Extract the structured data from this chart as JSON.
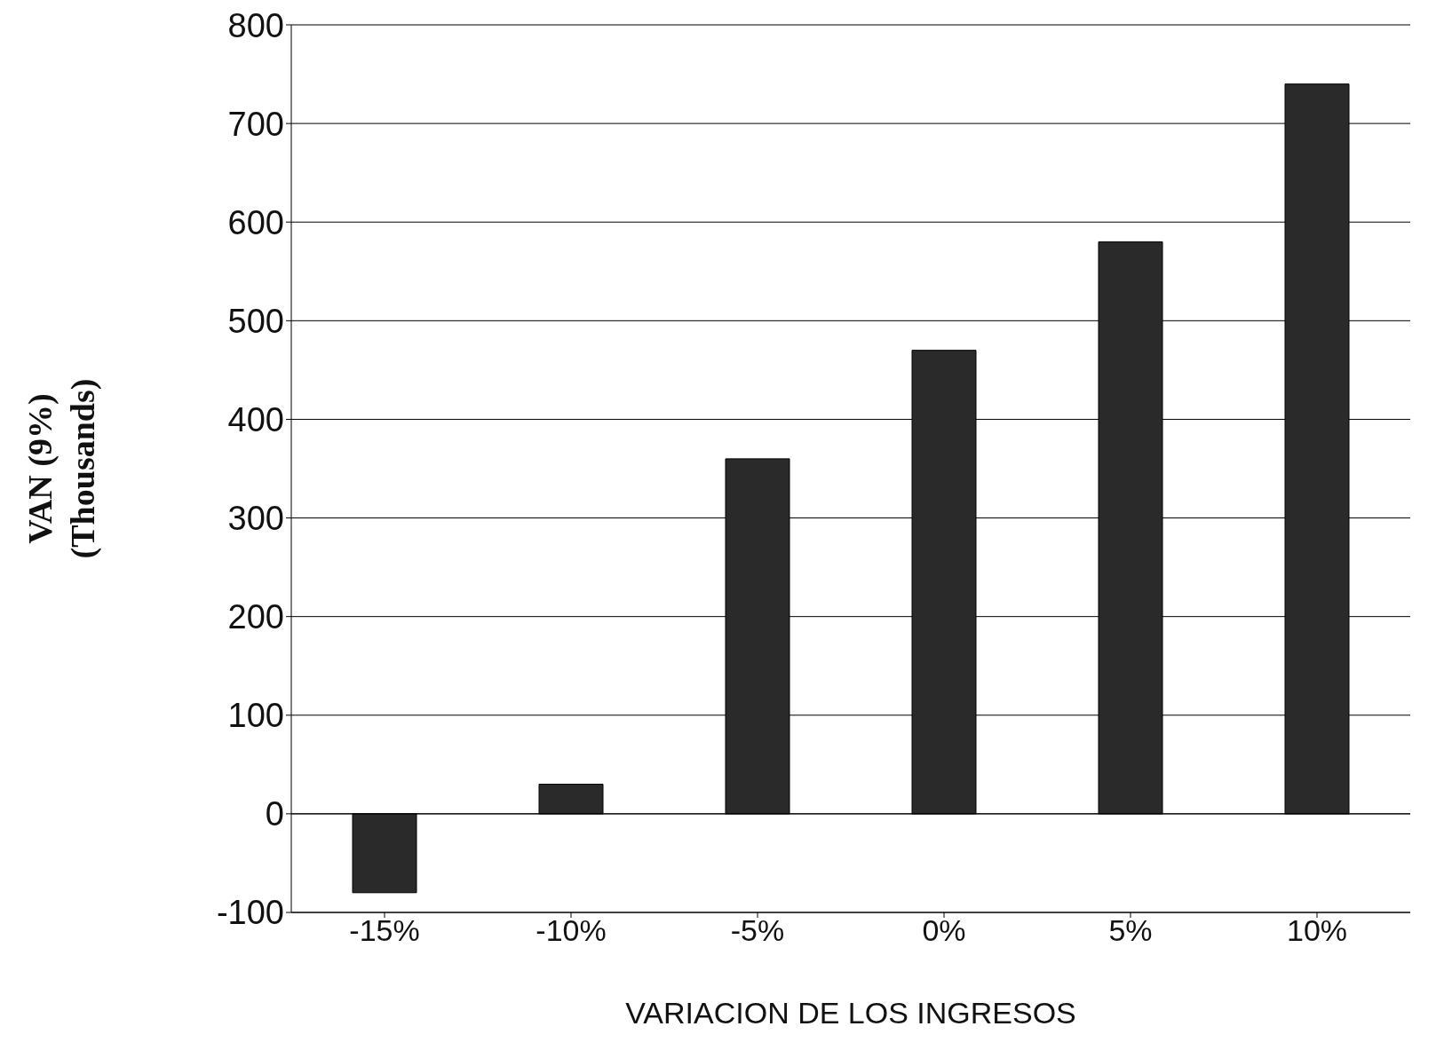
{
  "chart_data": {
    "type": "bar",
    "xlabel": "VARIACION DE LOS INGRESOS",
    "ylabel": "VAN (9%)\n(Thousands)",
    "categories": [
      "-15%",
      "-10%",
      "-5%",
      "0%",
      "5%",
      "10%"
    ],
    "values": [
      -80,
      30,
      360,
      470,
      580,
      740
    ],
    "color": "#2a2a2a",
    "ylim": [
      -100,
      800
    ],
    "yticks": [
      -100,
      0,
      100,
      200,
      300,
      400,
      500,
      600,
      700,
      800
    ],
    "grid": "y"
  }
}
